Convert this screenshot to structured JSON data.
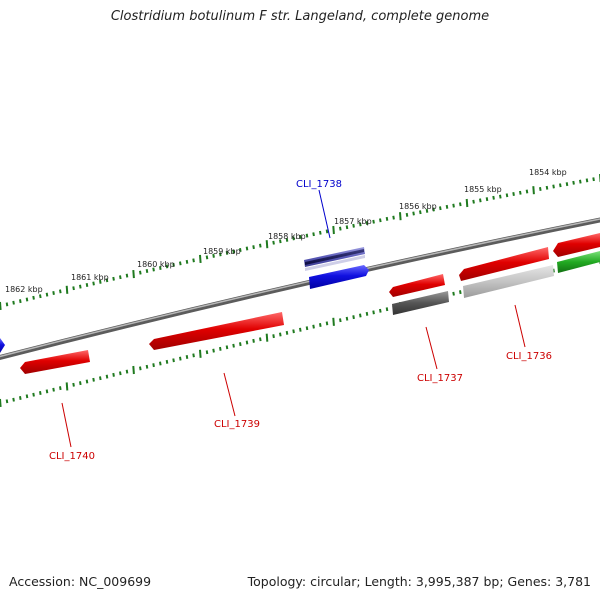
{
  "title": "Clostridium botulinum F str. Langeland, complete genome",
  "footer": {
    "accession": "Accession: NC_009699",
    "summary": "Topology: circular; Length: 3,995,387 bp; Genes: 3,781"
  },
  "scale_labels": [
    "1854 kbp",
    "1855 kbp",
    "1856 kbp",
    "1857 kbp",
    "1858 kbp",
    "1859 kbp",
    "1860 kbp",
    "1861 kbp",
    "1862 kbp"
  ],
  "gene_labels": [
    "CLI_1738",
    "CLI_1736",
    "CLI_1737",
    "CLI_1739",
    "CLI_1740"
  ],
  "colors": {
    "backbone": "#888888",
    "tick": "#1f7a1f",
    "forward_strand": "#e00000",
    "reverse_strand": "#1010e0",
    "label_red": "#cc0000",
    "label_blue": "#0000cc",
    "pseudo_gray": "#666666",
    "green_gene": "#22aa22"
  }
}
